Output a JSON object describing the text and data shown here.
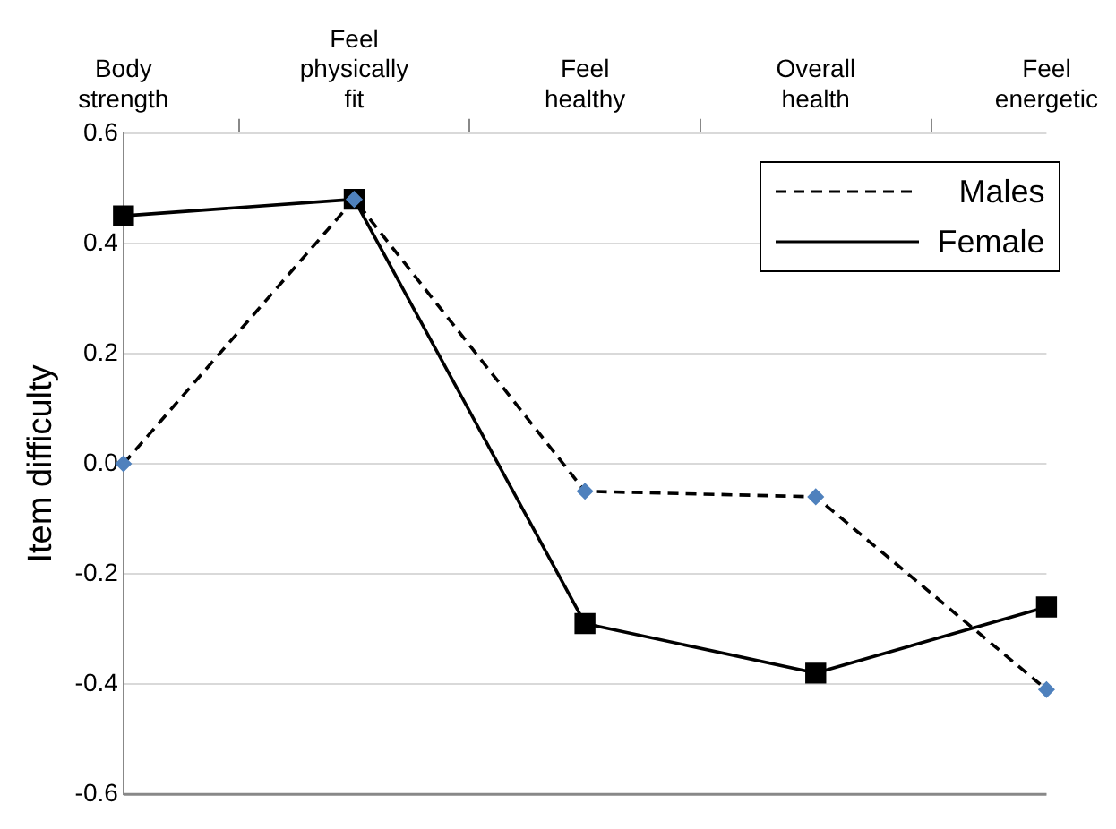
{
  "chart_data": {
    "type": "line",
    "ylabel": "Item difficulty",
    "categories": [
      "Body strength",
      "Feel physically fit",
      "Feel healthy",
      "Overall health",
      "Feel energetic"
    ],
    "series": [
      {
        "name": "Males",
        "color": "#4f81bd",
        "values": [
          0.0,
          0.48,
          -0.05,
          -0.06,
          -0.41
        ],
        "line_style": "dashed",
        "marker": "diamond"
      },
      {
        "name": "Female",
        "color": "#000000",
        "values": [
          0.45,
          0.48,
          -0.29,
          -0.38,
          -0.26
        ],
        "line_style": "solid",
        "marker": "square"
      }
    ],
    "ylim": [
      -0.6,
      0.6
    ],
    "yticks": [
      -0.6,
      -0.4,
      -0.2,
      {
        "value": 0,
        "label": "0.0"
      },
      0.2,
      0.4,
      0.6
    ],
    "grid": "y",
    "legend": "top right"
  }
}
